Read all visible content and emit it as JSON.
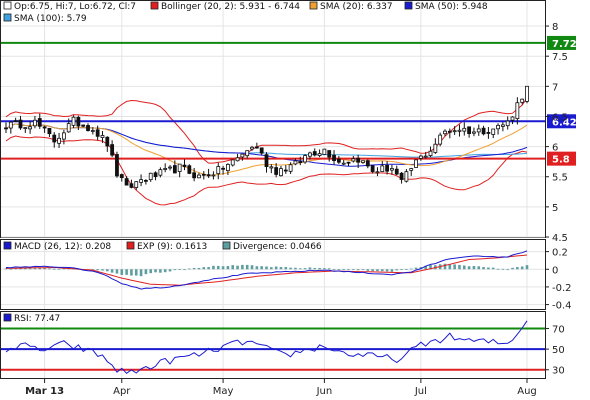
{
  "chart_data": [
    {
      "type": "candlestick",
      "legend": [
        {
          "label": "Op:6.75, Hi:7, Lo:6.72, Cl:7",
          "color": "#ffffff"
        },
        {
          "label": "Bollinger (20, 2): 5.931 - 6.744",
          "color": "#e02020"
        },
        {
          "label": "SMA (20): 6.337",
          "color": "#f0a030"
        },
        {
          "label": "SMA (50): 5.948",
          "color": "#1a1ad0"
        },
        {
          "label": "SMA (100): 5.79",
          "color": "#40a0e0"
        }
      ],
      "ylim": [
        4.5,
        8.2
      ],
      "y_ticks": [
        "4.5",
        "5",
        "5.5",
        "6",
        "6.5",
        "7",
        "7.5",
        "8"
      ],
      "x_ticks": [
        {
          "label": "Mar 13",
          "bar": 8
        },
        {
          "label": "Apr",
          "bar": 24
        },
        {
          "label": "May",
          "bar": 45
        },
        {
          "label": "Jun",
          "bar": 66
        },
        {
          "label": "Jul",
          "bar": 86
        },
        {
          "label": "Aug",
          "bar": 108
        }
      ],
      "levels": [
        {
          "value": 7.72,
          "label": "7.72",
          "color": "#118811"
        },
        {
          "value": 6.42,
          "label": "6.42",
          "color": "#1a1ad0"
        },
        {
          "value": 5.8,
          "label": "5.8",
          "color": "#e02020"
        }
      ],
      "price_anchors": [
        [
          0,
          6.35
        ],
        [
          6,
          6.4
        ],
        [
          10,
          6.1
        ],
        [
          14,
          6.42
        ],
        [
          18,
          6.3
        ],
        [
          21,
          6.05
        ],
        [
          23,
          5.55
        ],
        [
          25,
          5.3
        ],
        [
          28,
          5.45
        ],
        [
          32,
          5.55
        ],
        [
          36,
          5.65
        ],
        [
          40,
          5.5
        ],
        [
          44,
          5.6
        ],
        [
          48,
          5.8
        ],
        [
          50,
          5.95
        ],
        [
          52,
          6.0
        ],
        [
          54,
          5.72
        ],
        [
          56,
          5.6
        ],
        [
          60,
          5.7
        ],
        [
          63,
          5.9
        ],
        [
          66,
          5.95
        ],
        [
          69,
          5.75
        ],
        [
          73,
          5.8
        ],
        [
          76,
          5.6
        ],
        [
          80,
          5.65
        ],
        [
          82,
          5.4
        ],
        [
          85,
          5.75
        ],
        [
          88,
          5.95
        ],
        [
          91,
          6.25
        ],
        [
          94,
          6.3
        ],
        [
          97,
          6.25
        ],
        [
          101,
          6.3
        ],
        [
          104,
          6.4
        ],
        [
          107,
          6.85
        ],
        [
          108,
          7.0
        ]
      ]
    },
    {
      "type": "line",
      "legend": [
        {
          "label": "MACD (26, 12): 0.208",
          "color": "#1a1ad0"
        },
        {
          "label": "EXP (9): 0.1613",
          "color": "#e02020"
        },
        {
          "label": "Divergence: 0.0466",
          "color": "#5f9ea0"
        }
      ],
      "ylim": [
        -0.45,
        0.32
      ],
      "y_ticks": [
        "-0.4",
        "-0.2",
        "0",
        "0.2"
      ],
      "macd_anchors": [
        [
          0,
          0.02
        ],
        [
          8,
          0.03
        ],
        [
          14,
          0.02
        ],
        [
          20,
          -0.05
        ],
        [
          24,
          -0.16
        ],
        [
          28,
          -0.22
        ],
        [
          34,
          -0.2
        ],
        [
          42,
          -0.12
        ],
        [
          50,
          -0.05
        ],
        [
          58,
          -0.03
        ],
        [
          66,
          -0.01
        ],
        [
          74,
          -0.04
        ],
        [
          80,
          -0.06
        ],
        [
          84,
          -0.03
        ],
        [
          88,
          0.05
        ],
        [
          92,
          0.12
        ],
        [
          96,
          0.15
        ],
        [
          100,
          0.14
        ],
        [
          104,
          0.14
        ],
        [
          108,
          0.208
        ]
      ],
      "exp_anchors": [
        [
          0,
          0.01
        ],
        [
          10,
          0.02
        ],
        [
          18,
          -0.01
        ],
        [
          24,
          -0.1
        ],
        [
          30,
          -0.17
        ],
        [
          36,
          -0.18
        ],
        [
          44,
          -0.14
        ],
        [
          52,
          -0.08
        ],
        [
          60,
          -0.04
        ],
        [
          68,
          -0.02
        ],
        [
          76,
          -0.03
        ],
        [
          84,
          -0.04
        ],
        [
          90,
          0.03
        ],
        [
          96,
          0.11
        ],
        [
          102,
          0.13
        ],
        [
          108,
          0.1613
        ]
      ]
    },
    {
      "type": "line",
      "legend": [
        {
          "label": "RSI: 77.47",
          "color": "#1a1ad0"
        }
      ],
      "ylim": [
        22,
        85
      ],
      "y_ticks": [
        "30",
        "50",
        "70"
      ],
      "levels": [
        {
          "value": 70,
          "color": "#118811"
        },
        {
          "value": 50,
          "color": "#1a1ad0"
        },
        {
          "value": 30,
          "color": "#e02020"
        }
      ],
      "rsi_anchors": [
        [
          0,
          50
        ],
        [
          4,
          53
        ],
        [
          8,
          49
        ],
        [
          12,
          55
        ],
        [
          16,
          50
        ],
        [
          20,
          43
        ],
        [
          23,
          30
        ],
        [
          26,
          27
        ],
        [
          29,
          32
        ],
        [
          33,
          38
        ],
        [
          37,
          42
        ],
        [
          41,
          46
        ],
        [
          45,
          52
        ],
        [
          49,
          57
        ],
        [
          52,
          55
        ],
        [
          55,
          48
        ],
        [
          58,
          44
        ],
        [
          62,
          49
        ],
        [
          66,
          53
        ],
        [
          70,
          46
        ],
        [
          74,
          44
        ],
        [
          78,
          42
        ],
        [
          82,
          40
        ],
        [
          85,
          52
        ],
        [
          88,
          57
        ],
        [
          92,
          62
        ],
        [
          96,
          58
        ],
        [
          100,
          57
        ],
        [
          104,
          55
        ],
        [
          108,
          77.47
        ]
      ]
    }
  ]
}
